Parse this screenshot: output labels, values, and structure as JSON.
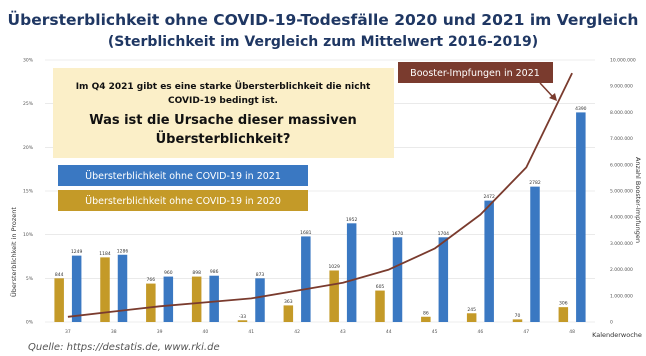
{
  "title": "Übersterblichkeit ohne COVID-19-Todesfälle 2020 und 2021 im Vergleich",
  "subtitle": "(Sterblichkeit im Vergleich zum Mittelwert 2016-2019)",
  "annotation": {
    "line1": "Im Q4 2021 gibt es eine starke Übersterblichkeit die nicht",
    "line2": "COVID-19 bedingt ist.",
    "question1": "Was ist die Ursache dieser massiven",
    "question2": "Übersterblichkeit?"
  },
  "source": "Quelle: https://destatis.de, www.rki.de",
  "colors": {
    "title": "#1f3763",
    "bar_2021": "#3a78c2",
    "bar_2020": "#c49a28",
    "booster_line": "#7a3b2e",
    "annotation_bg": "#fbefc8",
    "grid": "#dddddd"
  },
  "chart_data": {
    "type": "bar",
    "xlabel": "Kalenderwoche",
    "ylabel": "Übersterblichkeit in Prozent",
    "y2label": "Anzahl Booster-Impfungen",
    "categories": [
      "37",
      "38",
      "39",
      "40",
      "41",
      "42",
      "43",
      "44",
      "45",
      "46",
      "47",
      "48"
    ],
    "y_ticks": [
      "0%",
      "5%",
      "10%",
      "15%",
      "20%",
      "25%",
      "30%"
    ],
    "y2_ticks": [
      "0",
      "1.000.000",
      "2.000.000",
      "3.000.000",
      "4.000.000",
      "5.000.000",
      "6.000.000",
      "7.000.000",
      "8.000.000",
      "9.000.000",
      "10.000.000"
    ],
    "ylim": [
      0,
      30
    ],
    "y2lim": [
      0,
      10000000
    ],
    "series": [
      {
        "name": "Übersterblichkeit ohne COVID-19 in 2021",
        "values_pct": [
          7.6,
          7.7,
          5.2,
          5.3,
          5.0,
          9.8,
          11.3,
          9.7,
          9.7,
          13.9,
          15.5,
          24.0
        ],
        "labels": [
          "1249",
          "1286",
          "960",
          "986",
          "873",
          "1681",
          "1952",
          "1670",
          "1704",
          "2472",
          "2782",
          "4390"
        ]
      },
      {
        "name": "Übersterblichkeit ohne COVID-19 in 2020",
        "values_pct": [
          5.0,
          7.4,
          4.4,
          5.2,
          0.2,
          1.9,
          5.9,
          3.6,
          0.6,
          1.0,
          0.3,
          1.7
        ],
        "labels": [
          "844",
          "1184",
          "766",
          "898",
          "-33",
          "363",
          "1029",
          "605",
          "86",
          "245",
          "70",
          "306"
        ]
      }
    ],
    "booster_line": {
      "name": "Booster-Impfungen in 2021",
      "values": [
        200000,
        400000,
        600000,
        750000,
        900000,
        1200000,
        1500000,
        2000000,
        2800000,
        4100000,
        5900000,
        9500000
      ]
    }
  }
}
